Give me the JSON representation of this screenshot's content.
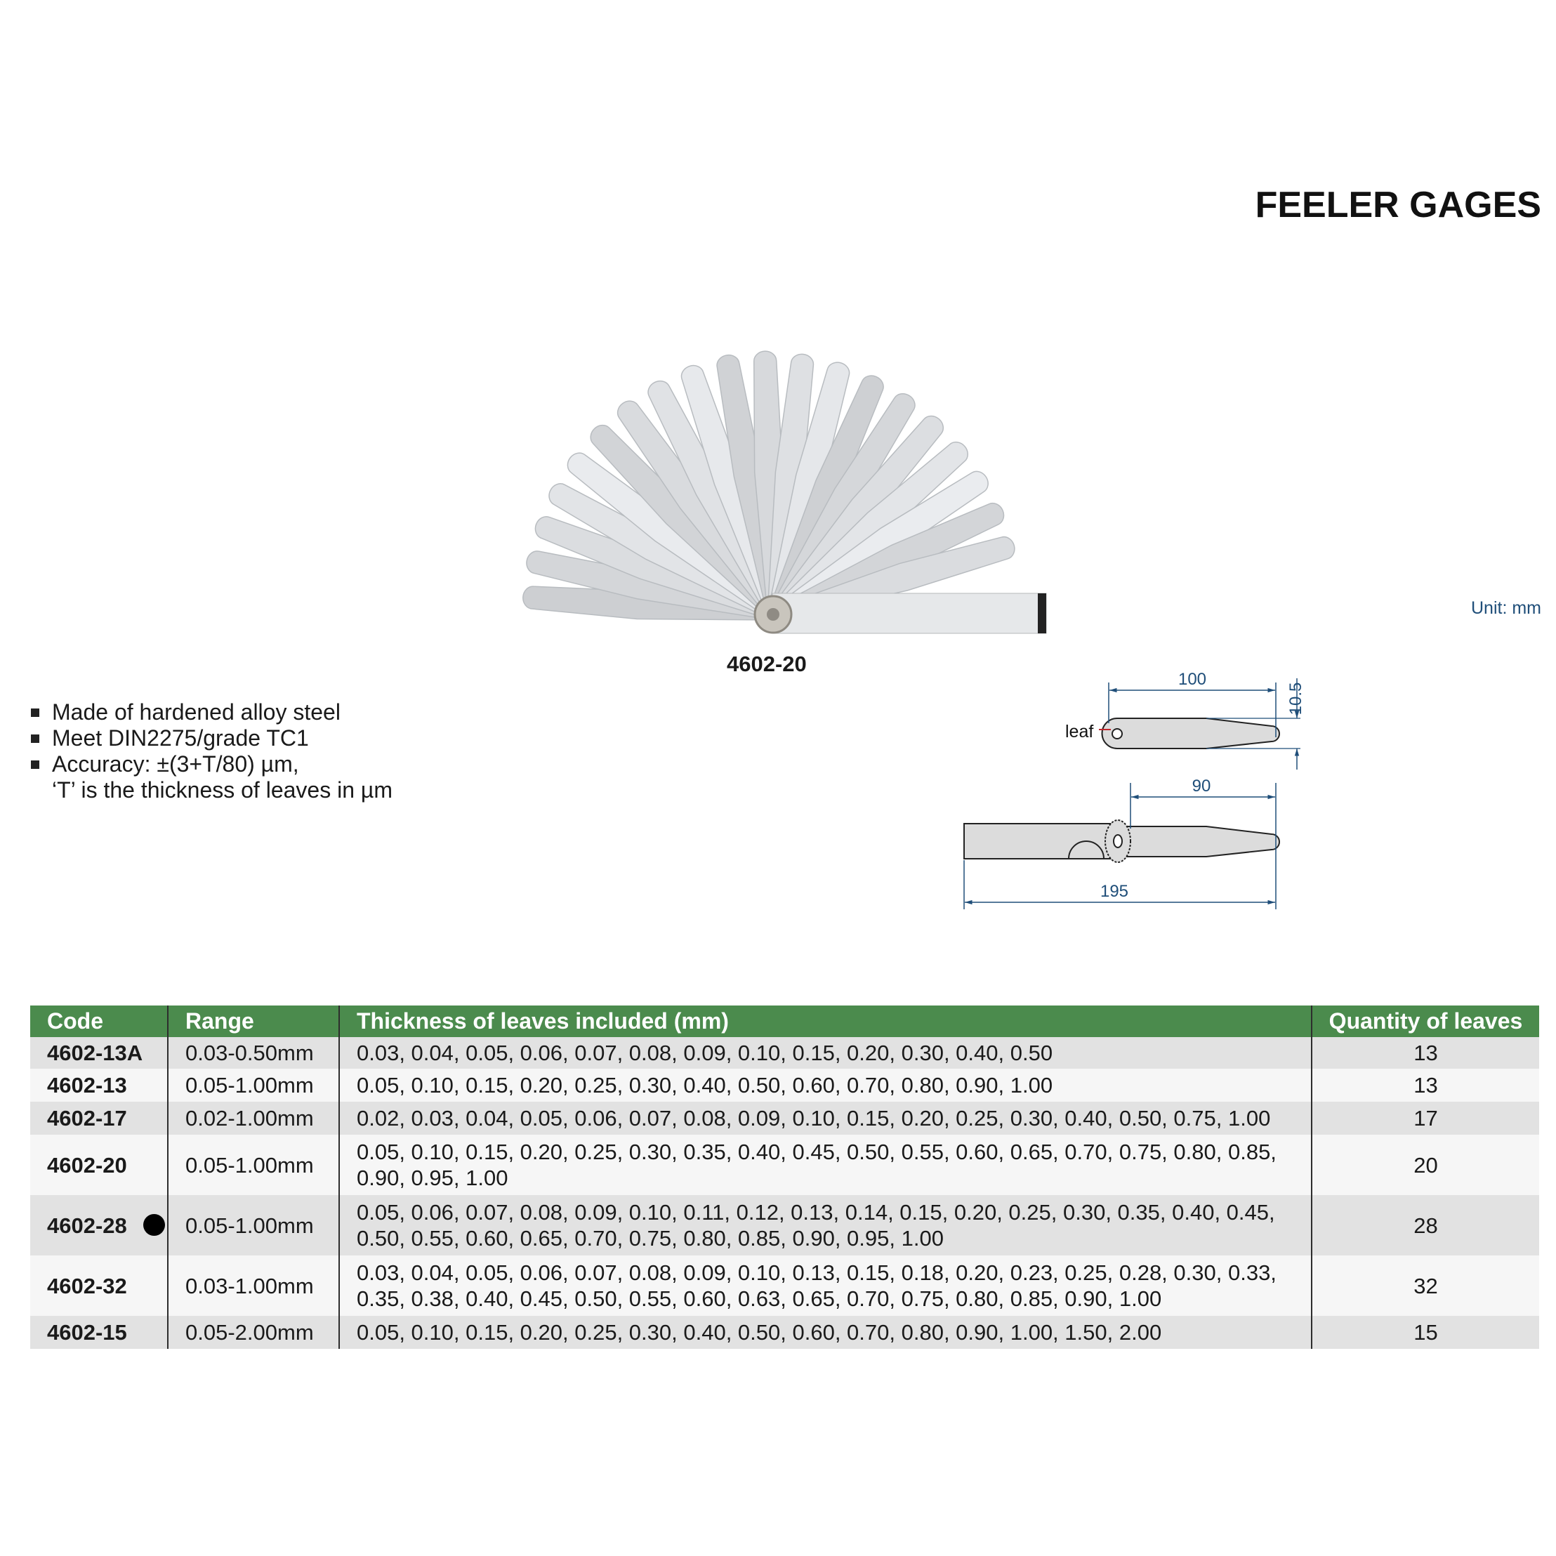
{
  "title": "FEELER GAGES",
  "product_image": {
    "caption": "4602-20"
  },
  "features": [
    "Made of hardened alloy steel",
    "Meet DIN2275/grade TC1",
    "Accuracy: ±(3+T/80) µm,"
  ],
  "feature_continuation": "‘T’ is the thickness of leaves in µm",
  "drawing": {
    "unit": "Unit: mm",
    "leaf_label": "leaf",
    "dim_leaf_length": "100",
    "dim_leaf_width": "10.5",
    "dim_exposed_length": "90",
    "dim_total_length": "195",
    "line_color": "#1f4e79",
    "leader_color": "#c0272d"
  },
  "table": {
    "header_color": "#4b8b4d",
    "headers": [
      "Code",
      "Range",
      "Thickness of leaves included (mm)",
      "Quantity of leaves"
    ],
    "rows": [
      {
        "code": "4602-13A",
        "range": "0.03-0.50mm",
        "thickness_lines": [
          "0.03, 0.04, 0.05, 0.06, 0.07, 0.08, 0.09, 0.10, 0.15, 0.20, 0.30, 0.40, 0.50"
        ],
        "quantity": "13"
      },
      {
        "code": "4602-13",
        "range": "0.05-1.00mm",
        "thickness_lines": [
          "0.05, 0.10, 0.15, 0.20, 0.25, 0.30, 0.40, 0.50, 0.60, 0.70, 0.80, 0.90, 1.00"
        ],
        "quantity": "13"
      },
      {
        "code": "4602-17",
        "range": "0.02-1.00mm",
        "thickness_lines": [
          "0.02, 0.03, 0.04, 0.05, 0.06, 0.07, 0.08, 0.09, 0.10, 0.15, 0.20, 0.25, 0.30, 0.40, 0.50, 0.75, 1.00"
        ],
        "quantity": "17"
      },
      {
        "code": "4602-20",
        "range": "0.05-1.00mm",
        "thickness_lines": [
          "0.05, 0.10, 0.15, 0.20, 0.25, 0.30, 0.35, 0.40, 0.45, 0.50, 0.55, 0.60, 0.65, 0.70, 0.75, 0.80, 0.85,",
          "0.90, 0.95, 1.00"
        ],
        "quantity": "20"
      },
      {
        "code": "4602-28",
        "marked": true,
        "range": "0.05-1.00mm",
        "thickness_lines": [
          "0.05, 0.06, 0.07, 0.08, 0.09, 0.10, 0.11, 0.12, 0.13, 0.14, 0.15, 0.20, 0.25, 0.30, 0.35, 0.40, 0.45,",
          "0.50, 0.55, 0.60, 0.65, 0.70, 0.75, 0.80, 0.85, 0.90, 0.95, 1.00"
        ],
        "quantity": "28"
      },
      {
        "code": "4602-32",
        "range": "0.03-1.00mm",
        "thickness_lines": [
          "0.03, 0.04, 0.05, 0.06, 0.07, 0.08, 0.09, 0.10, 0.13, 0.15, 0.18, 0.20, 0.23, 0.25, 0.28, 0.30, 0.33,",
          "0.35, 0.38, 0.40, 0.45, 0.50, 0.55, 0.60, 0.63, 0.65, 0.70, 0.75, 0.80, 0.85, 0.90, 1.00"
        ],
        "quantity": "32"
      },
      {
        "code": "4602-15",
        "range": "0.05-2.00mm",
        "thickness_lines": [
          "0.05, 0.10, 0.15, 0.20, 0.25, 0.30, 0.40, 0.50, 0.60, 0.70, 0.80, 0.90, 1.00, 1.50, 2.00"
        ],
        "quantity": "15"
      }
    ]
  }
}
